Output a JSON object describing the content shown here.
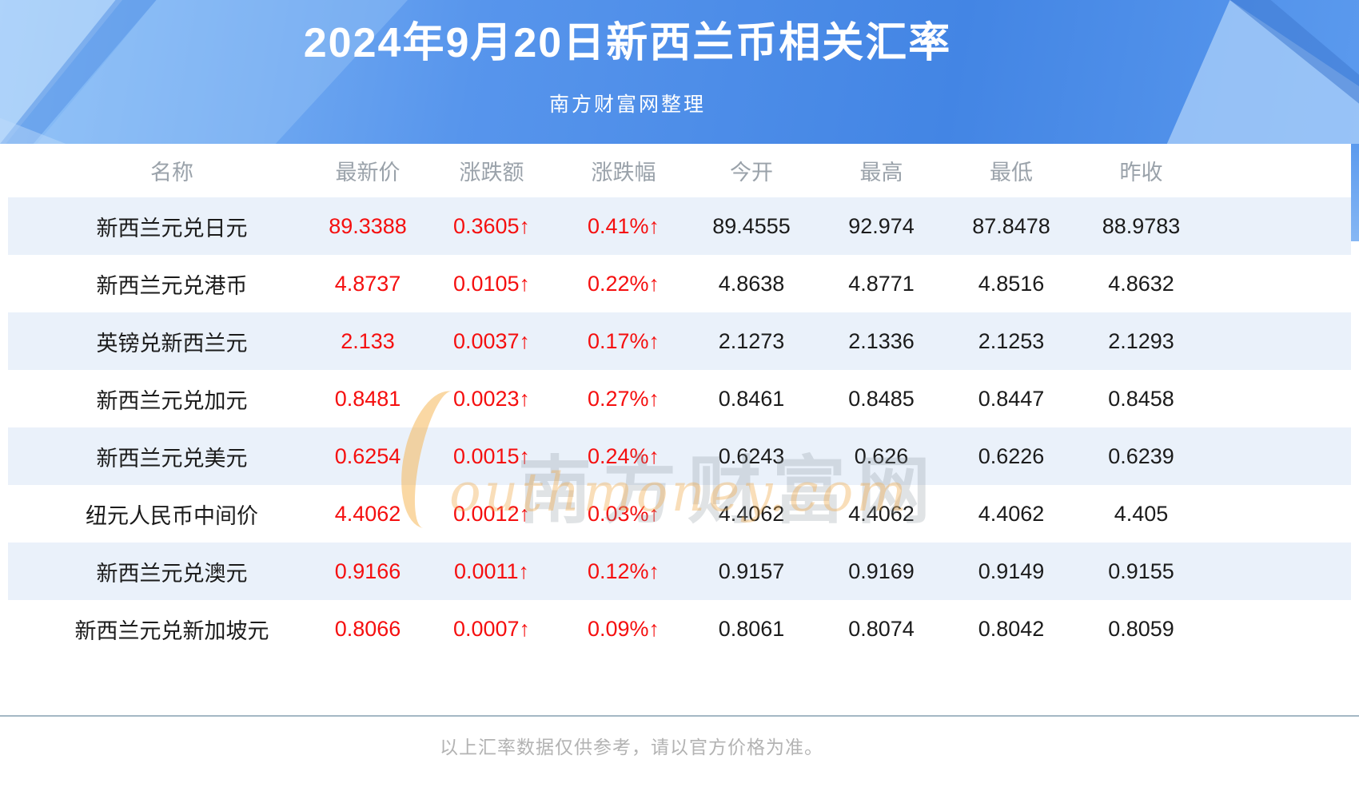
{
  "header": {
    "title": "2024年9月20日新西兰币相关汇率",
    "subtitle": "南方财富网整理"
  },
  "table": {
    "columns": [
      "名称",
      "最新价",
      "涨跌额",
      "涨跌幅",
      "今开",
      "最高",
      "最低",
      "昨收"
    ],
    "rows": [
      {
        "name": "新西兰元兑日元",
        "latest": "89.3388",
        "change": "0.3605↑",
        "change_pct": "0.41%↑",
        "open": "89.4555",
        "high": "92.974",
        "low": "87.8478",
        "prev_close": "88.9783"
      },
      {
        "name": "新西兰元兑港币",
        "latest": "4.8737",
        "change": "0.0105↑",
        "change_pct": "0.22%↑",
        "open": "4.8638",
        "high": "4.8771",
        "low": "4.8516",
        "prev_close": "4.8632"
      },
      {
        "name": "英镑兑新西兰元",
        "latest": "2.133",
        "change": "0.0037↑",
        "change_pct": "0.17%↑",
        "open": "2.1273",
        "high": "2.1336",
        "low": "2.1253",
        "prev_close": "2.1293"
      },
      {
        "name": "新西兰元兑加元",
        "latest": "0.8481",
        "change": "0.0023↑",
        "change_pct": "0.27%↑",
        "open": "0.8461",
        "high": "0.8485",
        "low": "0.8447",
        "prev_close": "0.8458"
      },
      {
        "name": "新西兰元兑美元",
        "latest": "0.6254",
        "change": "0.0015↑",
        "change_pct": "0.24%↑",
        "open": "0.6243",
        "high": "0.626",
        "low": "0.6226",
        "prev_close": "0.6239"
      },
      {
        "name": "纽元人民币中间价",
        "latest": "4.4062",
        "change": "0.0012↑",
        "change_pct": "0.03%↑",
        "open": "4.4062",
        "high": "4.4062",
        "low": "4.4062",
        "prev_close": "4.405"
      },
      {
        "name": "新西兰元兑澳元",
        "latest": "0.9166",
        "change": "0.0011↑",
        "change_pct": "0.12%↑",
        "open": "0.9157",
        "high": "0.9169",
        "low": "0.9149",
        "prev_close": "0.9155"
      },
      {
        "name": "新西兰元兑新加坡元",
        "latest": "0.8066",
        "change": "0.0007↑",
        "change_pct": "0.09%↑",
        "open": "0.8061",
        "high": "0.8074",
        "low": "0.8042",
        "prev_close": "0.8059"
      }
    ]
  },
  "watermark": {
    "cn": "南方财富网",
    "en": "outhmoney.com"
  },
  "footer": {
    "note": "以上汇率数据仅供参考，请以官方价格为准。"
  },
  "colors": {
    "hero_blue_1": "#8cc0f7",
    "hero_blue_2": "#5795ec",
    "hero_blue_3": "#4385e4",
    "row_alt": "#eaf1fa",
    "up_red": "#f50f0f",
    "head_gray": "#9aa2aa",
    "num_black": "#1b1b1b",
    "separator": "#a4b8c4",
    "note_gray": "#b3b3b3"
  }
}
